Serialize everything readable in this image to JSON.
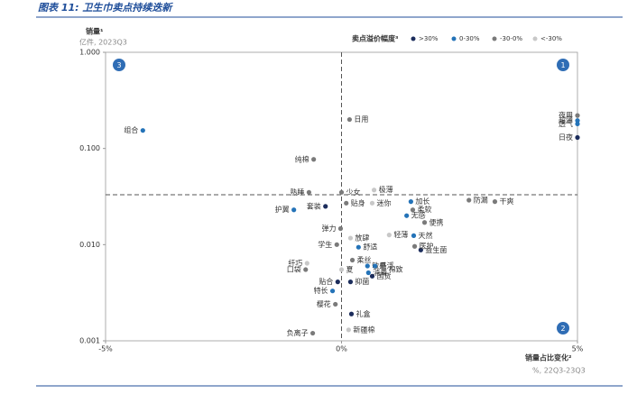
{
  "chart_data": {
    "type": "scatter",
    "title": "图表 11: 卫生巾卖点持续迭新",
    "y_label": "销量¹",
    "y_unit": "亿件, 2023Q3",
    "x_label": "销量占比变化²",
    "x_unit": "%, 22Q3-23Q3",
    "legend_title": "卖点溢价幅度³",
    "y_log": true,
    "xlim": [
      -5,
      5
    ],
    "ylim": [
      0.001,
      1
    ],
    "xticks": [
      {
        "value": -5,
        "label": "-5%"
      },
      {
        "value": 0,
        "label": "0%"
      },
      {
        "value": 5,
        "label": "5%"
      }
    ],
    "yticks": [
      {
        "value": 1,
        "label": "1.000"
      },
      {
        "value": 0.1,
        "label": "0.100"
      },
      {
        "value": 0.01,
        "label": "0.010"
      },
      {
        "value": 0.001,
        "label": "0.001"
      }
    ],
    "reference_lines": {
      "x": 0,
      "y": 0.033
    },
    "quadrants": [
      "3",
      "1",
      "2"
    ],
    "series": [
      {
        "name": ">30%",
        "color": "#1c2d5c",
        "x": [
          -0.34,
          1.68,
          -0.08,
          0.19,
          0.65,
          0.21,
          5
        ],
        "values": [
          0.025,
          0.0088,
          0.0041,
          0.0041,
          0.0047,
          0.0019,
          0.13
        ],
        "labels": [
          "套装",
          "益生菌",
          "贴合",
          "抑菌",
          "国货",
          "礼盒",
          "日夜"
        ]
      },
      {
        "name": "0-30%",
        "color": "#2473b8",
        "x": [
          -4.21,
          -1.01,
          1.47,
          1.38,
          1.53,
          0.36,
          0.55,
          0.71,
          0.57,
          -0.19,
          5,
          5
        ],
        "values": [
          0.154,
          0.023,
          0.028,
          0.02,
          0.0124,
          0.0094,
          0.006,
          0.006,
          0.0051,
          0.0033,
          0.195,
          0.18
        ],
        "labels": [
          "组合",
          "护翼",
          "加长",
          "无感",
          "天然",
          "舒适",
          "敏感",
          "悬浮",
          "消毒",
          "特长",
          "超薄",
          "透气"
        ]
      },
      {
        "name": "-30-0%",
        "color": "#7a7a7a",
        "x": [
          0.17,
          -0.59,
          -0.69,
          0,
          0.1,
          2.7,
          3.25,
          1.51,
          1.76,
          -0.02,
          -0.1,
          1.55,
          0.23,
          0.9,
          -0.76,
          -0.13,
          -0.61,
          5
        ],
        "values": [
          0.2,
          0.077,
          0.035,
          0.035,
          0.027,
          0.029,
          0.028,
          0.023,
          0.017,
          0.0147,
          0.01,
          0.0096,
          0.0069,
          0.0055,
          0.0055,
          0.0024,
          0.0012,
          0.22
        ],
        "labels": [
          "日用",
          "纯棉",
          "熟睡",
          "少女",
          "贴身",
          "防漏",
          "干爽",
          "柔软",
          "便携",
          "弹力",
          "学生",
          "医护",
          "柔丝",
          "棉致",
          "口袋",
          "樱花",
          "负离子",
          "夜用"
        ]
      },
      {
        "name": "<-30%",
        "color": "#c8c8c8",
        "x": [
          0.69,
          0.65,
          1.01,
          0.19,
          -0.73,
          0,
          0.15
        ],
        "values": [
          0.037,
          0.027,
          0.0126,
          0.0117,
          0.0064,
          0.0055,
          0.0013
        ],
        "labels": [
          "极薄",
          "迷你",
          "轻薄",
          "放肆",
          "纤巧",
          "夏",
          "新疆棉"
        ]
      }
    ]
  }
}
